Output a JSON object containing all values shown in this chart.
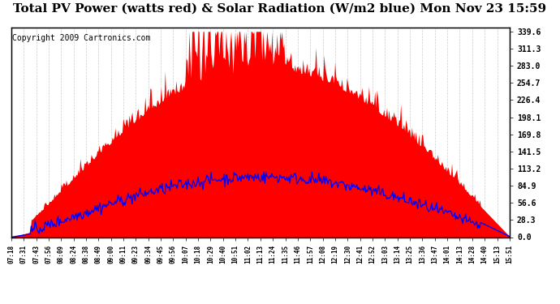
{
  "title": "Total PV Power (watts red) & Solar Radiation (W/m2 blue) Mon Nov 23 15:59",
  "copyright": "Copyright 2009 Cartronics.com",
  "ylabel_right": [
    "339.6",
    "311.3",
    "283.0",
    "254.7",
    "226.4",
    "198.1",
    "169.8",
    "141.5",
    "113.2",
    "84.9",
    "56.6",
    "28.3",
    "0.0"
  ],
  "ytick_values": [
    339.6,
    311.3,
    283.0,
    254.7,
    226.4,
    198.1,
    169.8,
    141.5,
    113.2,
    84.9,
    56.6,
    28.3,
    0.0
  ],
  "ymax": 339.6,
  "ymin": 0.0,
  "bg_color": "#ffffff",
  "plot_bg": "#ffffff",
  "grid_color": "#cccccc",
  "bar_color": "#ff0000",
  "line_color": "#0000ff",
  "title_fontsize": 11,
  "copyright_fontsize": 7,
  "xtick_labels": [
    "07:18",
    "07:31",
    "07:43",
    "07:56",
    "08:09",
    "08:24",
    "08:38",
    "08:49",
    "09:00",
    "09:11",
    "09:23",
    "09:34",
    "09:45",
    "09:56",
    "10:07",
    "10:18",
    "10:29",
    "10:40",
    "10:51",
    "11:02",
    "11:13",
    "11:24",
    "11:35",
    "11:46",
    "11:57",
    "12:08",
    "12:19",
    "12:30",
    "12:41",
    "12:52",
    "13:03",
    "13:14",
    "13:25",
    "13:36",
    "13:47",
    "14:01",
    "14:13",
    "14:28",
    "14:40",
    "15:13",
    "15:51"
  ],
  "n_points": 500
}
